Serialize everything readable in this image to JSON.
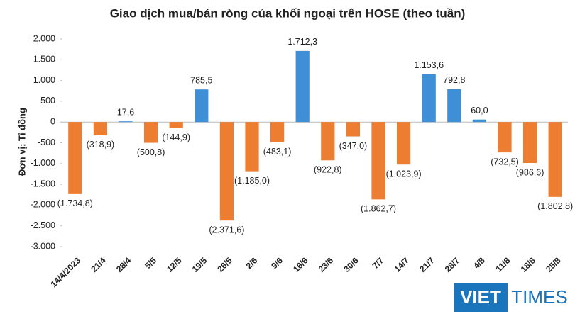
{
  "chart_data": {
    "type": "bar",
    "title": "Giao dịch mua/bán ròng của khối ngoại trên HOSE (theo tuần)",
    "y_label": "Đơn vị: Tỉ đồng",
    "categories": [
      "14/4/2023",
      "21/4",
      "28/4",
      "5/5",
      "12/5",
      "19/5",
      "26/5",
      "2/6",
      "9/6",
      "16/6",
      "23/6",
      "30/6",
      "7/7",
      "14/7",
      "21/7",
      "28/7",
      "4/8",
      "11/8",
      "18/8",
      "25/8"
    ],
    "values": [
      -1734.8,
      -318.9,
      17.6,
      -500.8,
      -144.9,
      785.5,
      -2371.6,
      -1185.0,
      -483.1,
      1712.3,
      -922.8,
      -347.0,
      -1862.7,
      -1023.9,
      1153.6,
      792.8,
      60.0,
      -732.5,
      -986.6,
      -1802.8
    ],
    "value_labels": [
      "(1.734,8)",
      "(318,9)",
      "17,6",
      "(500,8)",
      "(144,9)",
      "785,5",
      "(2.371,6)",
      "(1.185,0)",
      "(483,1)",
      "1.712,3",
      "(922,8)",
      "(347,0)",
      "(1.862,7)",
      "(1.023,9)",
      "1.153,6",
      "792,8",
      "60,0",
      "(732,5)",
      "(986,6)",
      "(1.802,8)"
    ],
    "color_positive": "#3f8fd6",
    "color_negative": "#ed7d31",
    "ylim": [
      -3000,
      2000
    ],
    "yticks": [
      {
        "value": 2000,
        "label": "2.000"
      },
      {
        "value": 1500,
        "label": "1.500"
      },
      {
        "value": 1000,
        "label": "1.000"
      },
      500,
      0,
      -500,
      {
        "value": -1000,
        "label": "-1.000"
      },
      {
        "value": -1500,
        "label": "-1.500"
      },
      {
        "value": -2000,
        "label": "-2.000"
      },
      {
        "value": -2500,
        "label": "-2.500"
      },
      {
        "value": -3000,
        "label": "-3.000"
      }
    ],
    "logo": [
      "VIET",
      "TIMES"
    ]
  }
}
